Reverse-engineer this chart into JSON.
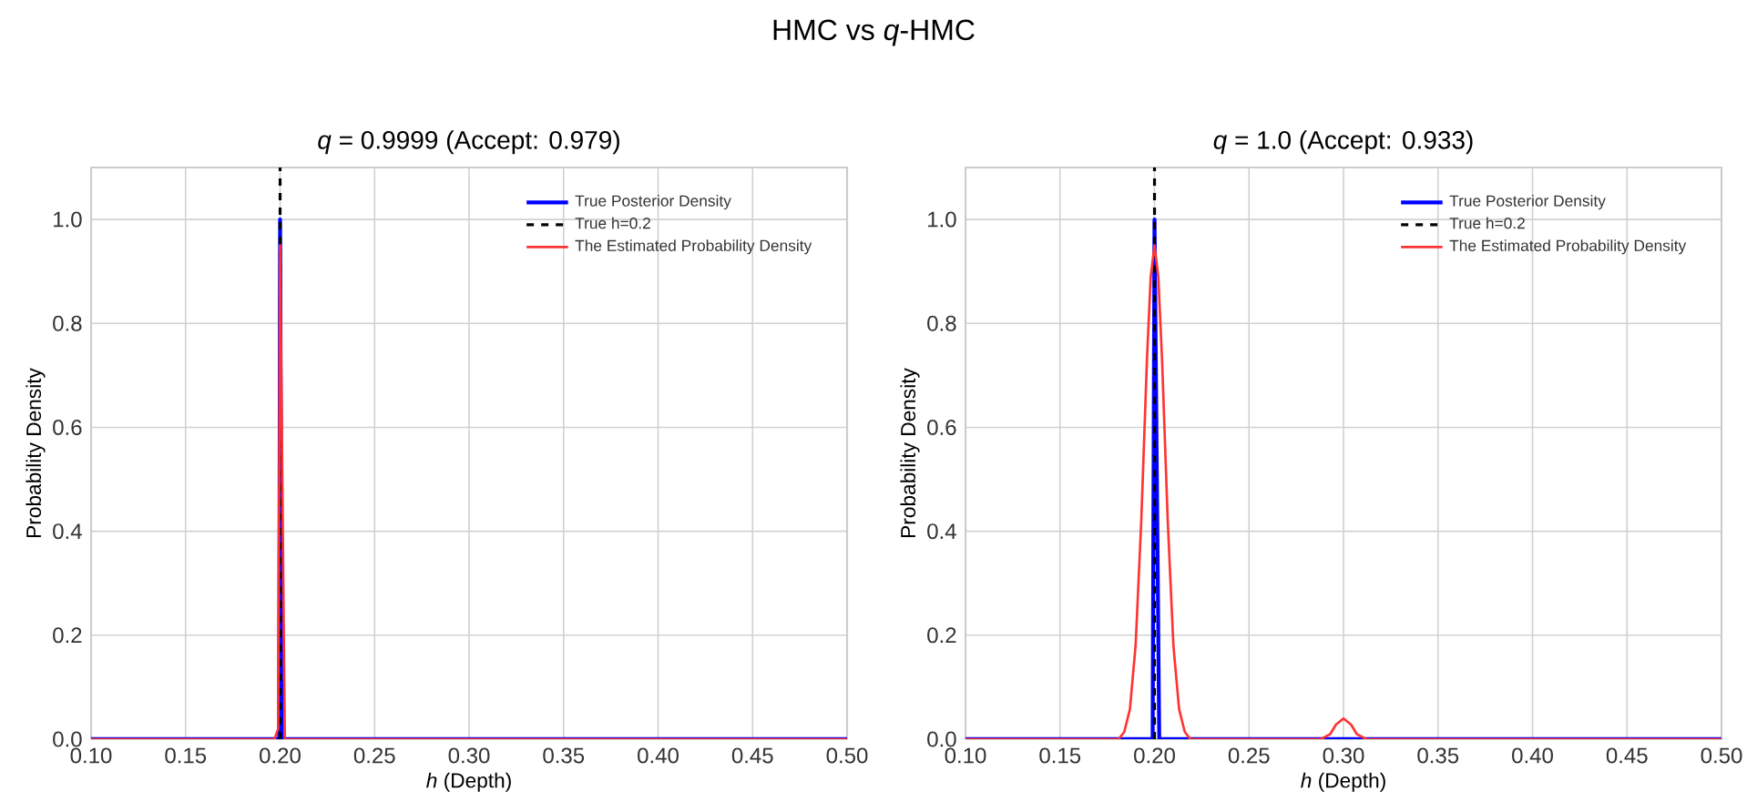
{
  "chart_data": [
    {
      "type": "other",
      "title": "HMC vs *q*-HMC"
    },
    {
      "type": "line",
      "title": "*q* = 0.9999 (Accept: 0.979)",
      "xlabel": "*h* (Depth)",
      "ylabel": "Probability Density",
      "xlim": [
        0.1,
        0.5
      ],
      "ylim": [
        0,
        1.1
      ],
      "xticks": [
        {
          "value": 0.1,
          "label": "0.10"
        },
        {
          "value": 0.15,
          "label": "0.15"
        },
        {
          "value": 0.2,
          "label": "0.20"
        },
        {
          "value": 0.25,
          "label": "0.25"
        },
        {
          "value": 0.3,
          "label": "0.30"
        },
        {
          "value": 0.35,
          "label": "0.35"
        },
        {
          "value": 0.4,
          "label": "0.40"
        },
        {
          "value": 0.45,
          "label": "0.45"
        },
        {
          "value": 0.5,
          "label": "0.50"
        }
      ],
      "yticks": [
        {
          "value": 0,
          "label": "0.0"
        },
        {
          "value": 0.2,
          "label": "0.2"
        },
        {
          "value": 0.4,
          "label": "0.4"
        },
        {
          "value": 0.6,
          "label": "0.6"
        },
        {
          "value": 0.8,
          "label": "0.8"
        },
        {
          "value": 1.0,
          "label": "1.0"
        }
      ],
      "grid": true,
      "legend": "top right",
      "marker": "none",
      "series": [
        {
          "name": "True Posterior Density",
          "color": "#0000ff",
          "x": [
            0.1,
            0.1995,
            0.2,
            0.201,
            0.5
          ],
          "values": [
            0,
            0,
            1.0,
            0,
            0
          ]
        },
        {
          "name": "True h=0.2",
          "color": "#000000",
          "line_style": "dashed",
          "x": [
            0.2,
            0.2
          ],
          "values": [
            0,
            1.1
          ]
        },
        {
          "name": "The Estimated Probability Density",
          "color": "#ff3333",
          "x": [
            0.1,
            0.197,
            0.199,
            0.2,
            0.2025,
            0.5
          ],
          "values": [
            0,
            0,
            0.02,
            0.95,
            0,
            0
          ]
        }
      ]
    },
    {
      "type": "line",
      "title": "*q* = 1.0 (Accept: 0.933)",
      "xlabel": "*h* (Depth)",
      "ylabel": "Probability Density",
      "xlim": [
        0.1,
        0.5
      ],
      "ylim": [
        0,
        1.1
      ],
      "xticks": [
        {
          "value": 0.1,
          "label": "0.10"
        },
        {
          "value": 0.15,
          "label": "0.15"
        },
        {
          "value": 0.2,
          "label": "0.20"
        },
        {
          "value": 0.25,
          "label": "0.25"
        },
        {
          "value": 0.3,
          "label": "0.30"
        },
        {
          "value": 0.35,
          "label": "0.35"
        },
        {
          "value": 0.4,
          "label": "0.40"
        },
        {
          "value": 0.45,
          "label": "0.45"
        },
        {
          "value": 0.5,
          "label": "0.50"
        }
      ],
      "yticks": [
        {
          "value": 0,
          "label": "0.0"
        },
        {
          "value": 0.2,
          "label": "0.2"
        },
        {
          "value": 0.4,
          "label": "0.4"
        },
        {
          "value": 0.6,
          "label": "0.6"
        },
        {
          "value": 0.8,
          "label": "0.8"
        },
        {
          "value": 1.0,
          "label": "1.0"
        }
      ],
      "grid": true,
      "legend": "top right",
      "marker": "none",
      "series": [
        {
          "name": "True Posterior Density",
          "color": "#0000ff",
          "x": [
            0.1,
            0.199,
            0.2,
            0.2025,
            0.5
          ],
          "values": [
            0,
            0,
            1.0,
            0,
            0
          ]
        },
        {
          "name": "True h=0.2",
          "color": "#000000",
          "line_style": "dashed",
          "x": [
            0.2,
            0.2
          ],
          "values": [
            0,
            1.1
          ]
        },
        {
          "name": "The Estimated Probability Density",
          "color": "#ff3333",
          "x": [
            0.1,
            0.181,
            0.184,
            0.187,
            0.19,
            0.193,
            0.196,
            0.198,
            0.2,
            0.202,
            0.204,
            0.207,
            0.21,
            0.213,
            0.216,
            0.219,
            0.288,
            0.293,
            0.296,
            0.3,
            0.304,
            0.307,
            0.312,
            0.5
          ],
          "values": [
            0,
            0,
            0.014,
            0.058,
            0.18,
            0.42,
            0.73,
            0.89,
            0.95,
            0.89,
            0.73,
            0.42,
            0.18,
            0.058,
            0.014,
            0,
            0,
            0.01,
            0.028,
            0.04,
            0.028,
            0.01,
            0,
            0
          ]
        }
      ]
    }
  ]
}
